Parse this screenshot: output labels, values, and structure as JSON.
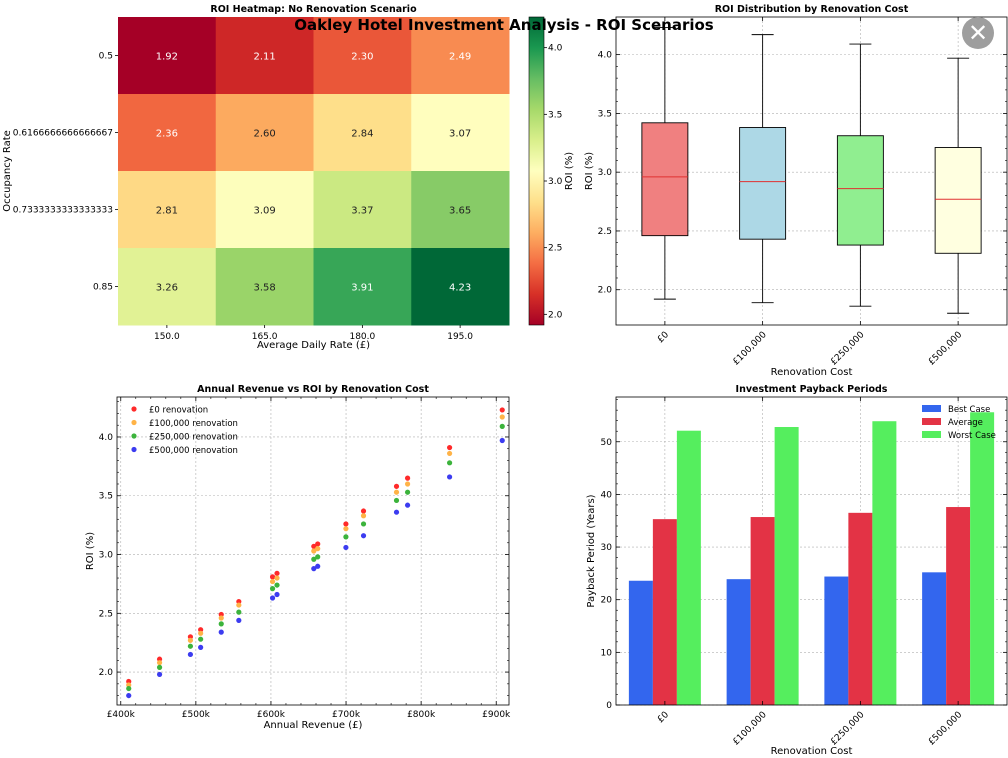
{
  "suptitle": "Oakley Hotel Investment Analysis - ROI Scenarios",
  "close_icon": "close-icon",
  "chart_data": [
    {
      "type": "heatmap",
      "title": "ROI Heatmap: No Renovation Scenario",
      "xlabel": "Average Daily Rate (£)",
      "ylabel": "Occupancy Rate",
      "x_categories": [
        "150.0",
        "165.0",
        "180.0",
        "195.0"
      ],
      "y_categories": [
        "0.5",
        "0.6166666666666667",
        "0.7333333333333333",
        "0.85"
      ],
      "values": [
        [
          1.92,
          2.11,
          2.3,
          2.49
        ],
        [
          2.36,
          2.6,
          2.84,
          3.07
        ],
        [
          2.81,
          3.09,
          3.37,
          3.65
        ],
        [
          3.26,
          3.58,
          3.91,
          4.23
        ]
      ],
      "colorbar": {
        "label": "ROI (%)",
        "ticks": [
          "2.0",
          "2.5",
          "3.0",
          "3.5",
          "4.0"
        ],
        "range": [
          1.92,
          4.23
        ],
        "colormap": "RdYlGn"
      }
    },
    {
      "type": "box",
      "title": "ROI Distribution by Renovation Cost",
      "xlabel": "Renovation Cost",
      "ylabel": "ROI (%)",
      "ylim": [
        1.7,
        4.32
      ],
      "yticks": [
        "2.0",
        "2.5",
        "3.0",
        "3.5",
        "4.0"
      ],
      "categories": [
        "£0",
        "£100,000",
        "£250,000",
        "£500,000"
      ],
      "boxes": [
        {
          "min": 1.92,
          "q1": 2.46,
          "median": 2.96,
          "q3": 3.42,
          "max": 4.23,
          "color": "#f08080"
        },
        {
          "min": 1.89,
          "q1": 2.43,
          "median": 2.92,
          "q3": 3.38,
          "max": 4.17,
          "color": "#add8e6"
        },
        {
          "min": 1.86,
          "q1": 2.38,
          "median": 2.86,
          "q3": 3.31,
          "max": 4.09,
          "color": "#90ee90"
        },
        {
          "min": 1.8,
          "q1": 2.31,
          "median": 2.77,
          "q3": 3.21,
          "max": 3.97,
          "color": "#ffffe0"
        }
      ]
    },
    {
      "type": "scatter",
      "title": "Annual Revenue vs ROI by Renovation Cost",
      "xlabel": "Annual Revenue (£)",
      "ylabel": "ROI (%)",
      "xlim": [
        395000,
        917000
      ],
      "ylim": [
        1.72,
        4.34
      ],
      "xticks": [
        400000,
        500000,
        600000,
        700000,
        800000,
        900000
      ],
      "xtick_labels": [
        "£400k",
        "£500k",
        "£600k",
        "£700k",
        "£800k",
        "£900k"
      ],
      "yticks": [
        2.0,
        2.5,
        3.0,
        3.5,
        4.0
      ],
      "ytick_labels": [
        "2.0",
        "2.5",
        "3.0",
        "3.5",
        "4.0"
      ],
      "x": [
        410625,
        451688,
        492750,
        506379,
        533813,
        557224,
        602143,
        608070,
        657063,
        662266,
        699813,
        723282,
        767200,
        781956,
        837900,
        908004
      ],
      "series": [
        {
          "name": "£0 renovation",
          "color": "#ff2a2a",
          "values": [
            1.92,
            2.11,
            2.3,
            2.36,
            2.49,
            2.6,
            2.81,
            2.84,
            3.07,
            3.09,
            3.26,
            3.37,
            3.58,
            3.65,
            3.91,
            4.23
          ]
        },
        {
          "name": "£100,000 renovation",
          "color": "#ffb347",
          "values": [
            1.89,
            2.08,
            2.27,
            2.33,
            2.46,
            2.57,
            2.77,
            2.8,
            3.03,
            3.05,
            3.22,
            3.33,
            3.53,
            3.6,
            3.86,
            4.17
          ]
        },
        {
          "name": "£250,000 renovation",
          "color": "#3cb33c",
          "values": [
            1.86,
            2.04,
            2.22,
            2.28,
            2.41,
            2.51,
            2.71,
            2.74,
            2.96,
            2.98,
            3.15,
            3.26,
            3.46,
            3.53,
            3.78,
            4.09
          ]
        },
        {
          "name": "£500,000 renovation",
          "color": "#3c3cf0",
          "values": [
            1.8,
            1.98,
            2.15,
            2.21,
            2.34,
            2.44,
            2.63,
            2.66,
            2.88,
            2.9,
            3.06,
            3.16,
            3.36,
            3.42,
            3.66,
            3.97
          ]
        }
      ]
    },
    {
      "type": "bar",
      "title": "Investment Payback Periods",
      "xlabel": "Renovation Cost",
      "ylabel": "Payback Period (Years)",
      "ylim": [
        0,
        58.5
      ],
      "yticks": [
        "0",
        "10",
        "20",
        "30",
        "40",
        "50"
      ],
      "categories": [
        "£0",
        "£100,000",
        "£250,000",
        "£500,000"
      ],
      "legend_position": "top-right",
      "series": [
        {
          "name": "Best Case",
          "color": "#3366ee",
          "values": [
            23.6,
            23.9,
            24.4,
            25.2
          ]
        },
        {
          "name": "Average",
          "color": "#e33345",
          "values": [
            35.3,
            35.7,
            36.5,
            37.6
          ]
        },
        {
          "name": "Worst Case",
          "color": "#55ee5e",
          "values": [
            52.1,
            52.8,
            53.9,
            55.6
          ]
        }
      ]
    }
  ]
}
